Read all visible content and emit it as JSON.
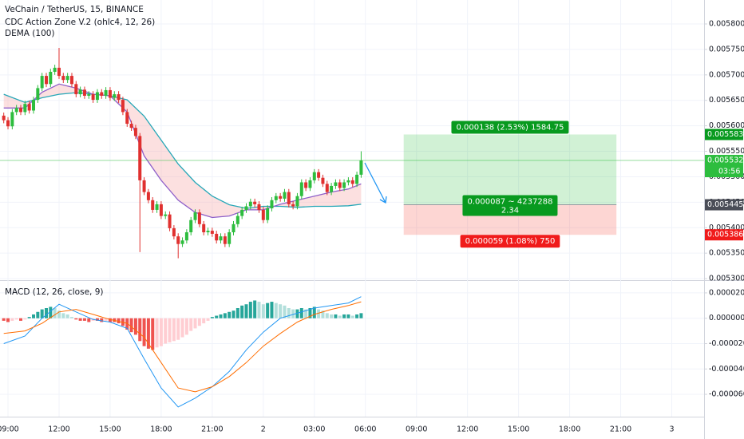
{
  "chart_data": [
    {
      "type": "candlestick",
      "title": "VeChain / TetherUS, 15, BINANCE",
      "indicators": [
        "CDC Action Zone V.2 (ohlc4, 12, 26)",
        "DEMA (100)"
      ],
      "xlim": [
        -0.47,
        40.9
      ],
      "ylim": [
        0.005297,
        0.005847
      ],
      "yticks": [
        {
          "value": 0.0058,
          "label": "0.005800"
        },
        {
          "value": 0.00575,
          "label": "0.005750"
        },
        {
          "value": 0.0057,
          "label": "0.005700"
        },
        {
          "value": 0.00565,
          "label": "0.005650"
        },
        {
          "value": 0.0056,
          "label": "0.005600"
        },
        {
          "value": 0.00555,
          "label": "0.005550"
        },
        {
          "value": 0.0055,
          "label": "0.005500"
        },
        {
          "value": 0.00545,
          "label": "0.005450"
        },
        {
          "value": 0.0054,
          "label": "0.005400"
        },
        {
          "value": 0.00535,
          "label": "0.005350"
        },
        {
          "value": 0.0053,
          "label": "0.005300"
        }
      ],
      "grid": true,
      "up_color": "#2dbd3e",
      "down_color": "#e0302f",
      "x": [
        -0.25,
        0,
        0.25,
        0.5,
        0.75,
        1,
        1.25,
        1.5,
        1.75,
        2,
        2.25,
        2.5,
        2.75,
        3,
        3.25,
        3.5,
        3.75,
        4,
        4.25,
        4.5,
        4.75,
        5,
        5.25,
        5.5,
        5.75,
        6,
        6.25,
        6.5,
        6.75,
        7,
        7.25,
        7.5,
        7.75,
        8,
        8.25,
        8.5,
        8.75,
        9,
        9.25,
        9.5,
        9.75,
        10,
        10.25,
        10.5,
        10.75,
        11,
        11.25,
        11.5,
        11.75,
        12,
        12.25,
        12.5,
        12.75,
        13,
        13.25,
        13.5,
        13.75,
        14,
        14.25,
        14.5,
        14.75,
        15,
        15.25,
        15.5,
        15.75,
        16,
        16.25,
        16.5,
        16.75,
        17,
        17.25,
        17.5,
        17.75,
        18,
        18.25,
        18.5,
        18.75,
        19,
        19.25,
        19.5,
        19.75,
        20,
        20.25,
        20.5,
        20.75
      ],
      "open": [
        0.00562,
        0.005611,
        0.005599,
        0.005627,
        0.005635,
        0.005627,
        0.005643,
        0.00563,
        0.005651,
        0.005674,
        0.005698,
        0.005682,
        0.005706,
        0.005714,
        0.005698,
        0.00569,
        0.005698,
        0.005682,
        0.005662,
        0.005671,
        0.005659,
        0.005662,
        0.005651,
        0.005666,
        0.005659,
        0.00567,
        0.005655,
        0.005662,
        0.005651,
        0.005627,
        0.005604,
        0.005596,
        0.00558,
        0.005493,
        0.00547,
        0.005454,
        0.005435,
        0.005446,
        0.005423,
        0.005426,
        0.005399,
        0.005383,
        0.005368,
        0.005375,
        0.005391,
        0.005415,
        0.00543,
        0.005407,
        0.005391,
        0.005394,
        0.005388,
        0.005375,
        0.005383,
        0.005368,
        0.005391,
        0.005407,
        0.005423,
        0.005435,
        0.005442,
        0.005451,
        0.005446,
        0.005435,
        0.005415,
        0.005438,
        0.005454,
        0.005462,
        0.005457,
        0.00547,
        0.005446,
        0.005442,
        0.005462,
        0.005489,
        0.005478,
        0.005493,
        0.005509,
        0.005498,
        0.005486,
        0.00547,
        0.005482,
        0.005489,
        0.005478,
        0.005489,
        0.005493,
        0.005486,
        0.005504
      ],
      "high": [
        0.005626,
        0.005617,
        0.005633,
        0.005641,
        0.005641,
        0.005649,
        0.005649,
        0.005657,
        0.00568,
        0.005704,
        0.005704,
        0.005712,
        0.00572,
        0.005753,
        0.005704,
        0.005704,
        0.005704,
        0.005688,
        0.005677,
        0.005677,
        0.005668,
        0.005668,
        0.005672,
        0.005672,
        0.005676,
        0.005676,
        0.005668,
        0.005668,
        0.005657,
        0.005633,
        0.00561,
        0.005602,
        0.005586,
        0.005499,
        0.005476,
        0.00546,
        0.005452,
        0.005452,
        0.005432,
        0.005432,
        0.005405,
        0.005389,
        0.005381,
        0.005397,
        0.005421,
        0.005436,
        0.005436,
        0.005413,
        0.0054,
        0.0054,
        0.005394,
        0.005389,
        0.005389,
        0.005397,
        0.005413,
        0.005429,
        0.005441,
        0.005448,
        0.005457,
        0.005457,
        0.005452,
        0.005441,
        0.005444,
        0.00546,
        0.005468,
        0.005468,
        0.005476,
        0.005476,
        0.005452,
        0.005468,
        0.005495,
        0.005495,
        0.005499,
        0.005515,
        0.005515,
        0.005504,
        0.005492,
        0.005488,
        0.005495,
        0.005495,
        0.005495,
        0.005499,
        0.005499,
        0.00551,
        0.00555
      ],
      "low": [
        0.005605,
        0.005593,
        0.005593,
        0.005621,
        0.005621,
        0.005621,
        0.005624,
        0.005624,
        0.005645,
        0.005668,
        0.005676,
        0.005676,
        0.0057,
        0.005692,
        0.005684,
        0.005684,
        0.005676,
        0.005656,
        0.005656,
        0.005653,
        0.005653,
        0.005645,
        0.005645,
        0.005653,
        0.005653,
        0.005649,
        0.005649,
        0.005645,
        0.005621,
        0.005598,
        0.00559,
        0.005574,
        0.005352,
        0.005464,
        0.005448,
        0.005429,
        0.005429,
        0.005417,
        0.005417,
        0.005393,
        0.005377,
        0.00534,
        0.005362,
        0.005369,
        0.005385,
        0.005409,
        0.005401,
        0.005385,
        0.005385,
        0.005382,
        0.005369,
        0.005369,
        0.005362,
        0.005362,
        0.005385,
        0.005401,
        0.005417,
        0.005429,
        0.005436,
        0.00544,
        0.005429,
        0.005409,
        0.005409,
        0.005432,
        0.005448,
        0.005451,
        0.005451,
        0.00544,
        0.005436,
        0.005436,
        0.005456,
        0.005472,
        0.005472,
        0.005487,
        0.005492,
        0.00548,
        0.005464,
        0.005464,
        0.005476,
        0.005472,
        0.005472,
        0.005483,
        0.00548,
        0.00548,
        0.005498
      ],
      "close": [
        0.005611,
        0.005599,
        0.005627,
        0.005635,
        0.005627,
        0.005643,
        0.00563,
        0.005651,
        0.005674,
        0.005698,
        0.005682,
        0.005706,
        0.005714,
        0.005698,
        0.00569,
        0.005698,
        0.005682,
        0.005662,
        0.005671,
        0.005659,
        0.005662,
        0.005651,
        0.005666,
        0.005659,
        0.00567,
        0.005655,
        0.005662,
        0.005651,
        0.005627,
        0.005604,
        0.005596,
        0.00558,
        0.005493,
        0.00547,
        0.005454,
        0.005435,
        0.005446,
        0.005423,
        0.005426,
        0.005399,
        0.005383,
        0.005368,
        0.005375,
        0.005391,
        0.005415,
        0.00543,
        0.005407,
        0.005391,
        0.005394,
        0.005388,
        0.005375,
        0.005383,
        0.005368,
        0.005391,
        0.005407,
        0.005423,
        0.005435,
        0.005442,
        0.005451,
        0.005446,
        0.005435,
        0.005415,
        0.005438,
        0.005454,
        0.005462,
        0.005457,
        0.00547,
        0.005446,
        0.005442,
        0.005462,
        0.005489,
        0.005478,
        0.005493,
        0.005509,
        0.005498,
        0.005486,
        0.00547,
        0.005482,
        0.005489,
        0.005478,
        0.005489,
        0.005493,
        0.005486,
        0.005504,
        0.005532
      ],
      "lines": [
        {
          "color": "#26a7b7",
          "x": [
            -0.25,
            1,
            2,
            3,
            4,
            5,
            6,
            7,
            8,
            9,
            10,
            11,
            12,
            13,
            14,
            15,
            16,
            17,
            18,
            19,
            20,
            20.75
          ],
          "values": [
            0.005662,
            0.005646,
            0.005655,
            0.005662,
            0.005665,
            0.005662,
            0.005659,
            0.005651,
            0.005619,
            0.005572,
            0.005525,
            0.005489,
            0.005462,
            0.005445,
            0.005438,
            0.005442,
            0.005442,
            0.00544,
            0.005442,
            0.005442,
            0.005443,
            0.005446
          ]
        },
        {
          "color": "#8e5fc9",
          "x": [
            -0.25,
            1,
            2,
            3,
            4,
            5,
            6,
            7,
            8,
            9,
            10,
            11,
            12,
            13,
            14,
            15,
            16,
            17,
            18,
            19,
            20,
            20.75
          ],
          "values": [
            0.005635,
            0.005635,
            0.005666,
            0.005682,
            0.005674,
            0.005662,
            0.005659,
            0.005627,
            0.005541,
            0.005493,
            0.005454,
            0.00543,
            0.00542,
            0.005423,
            0.005435,
            0.005435,
            0.005446,
            0.005454,
            0.005462,
            0.00547,
            0.005476,
            0.005486
          ]
        }
      ],
      "last_price": {
        "value": 0.005532,
        "label": "0.005532",
        "countdown": "03:56",
        "color": "#2dbd3e"
      },
      "position": {
        "x_range": [
          23.25,
          35.75
        ],
        "target": {
          "value": 0.005583,
          "label": "0.005583"
        },
        "entry": {
          "value": 0.005445,
          "label": "0.005445"
        },
        "stop": {
          "value": 0.005386,
          "label": "0.005386"
        },
        "target_text": "0.000138 (2.53%) 1584.75",
        "entry_text": [
          "0.000087 ~ 4237288",
          "2.34"
        ],
        "stop_text": "0.000059 (1.08%) 750",
        "profit_color": "#089a1f",
        "loss_color": "#f01b1b"
      }
    },
    {
      "type": "macd",
      "title": "MACD (12, 26, close, 9)",
      "xlim": [
        -0.47,
        40.9
      ],
      "ylim": [
        -7.76e-05,
        2.94e-05
      ],
      "yticks": [
        {
          "value": 2e-05,
          "label": "0.000020"
        },
        {
          "value": 0,
          "label": "0.000000"
        },
        {
          "value": -2e-05,
          "label": "-0.000020"
        },
        {
          "value": -4e-05,
          "label": "-0.000040"
        },
        {
          "value": -6e-05,
          "label": "-0.000060"
        }
      ],
      "xticks": [
        {
          "value": 0,
          "label": "09:00"
        },
        {
          "value": 3,
          "label": "12:00"
        },
        {
          "value": 6,
          "label": "15:00"
        },
        {
          "value": 9,
          "label": "18:00"
        },
        {
          "value": 12,
          "label": "21:00"
        },
        {
          "value": 15,
          "label": "2"
        },
        {
          "value": 18,
          "label": "03:00"
        },
        {
          "value": 21,
          "label": "06:00"
        },
        {
          "value": 24,
          "label": "09:00"
        },
        {
          "value": 27,
          "label": "12:00"
        },
        {
          "value": 30,
          "label": "15:00"
        },
        {
          "value": 33,
          "label": "18:00"
        },
        {
          "value": 36,
          "label": "21:00"
        },
        {
          "value": 39,
          "label": "3"
        }
      ],
      "hist_colors": [
        "#26a69a",
        "#b2dfdb",
        "#ef5350",
        "#ffcdd2"
      ],
      "hist_x": [
        -0.25,
        0,
        0.25,
        0.5,
        0.75,
        1,
        1.25,
        1.5,
        1.75,
        2,
        2.25,
        2.5,
        2.75,
        3,
        3.25,
        3.5,
        3.75,
        4,
        4.25,
        4.5,
        4.75,
        5,
        5.25,
        5.5,
        5.75,
        6,
        6.25,
        6.5,
        6.75,
        7,
        7.25,
        7.5,
        7.75,
        8,
        8.25,
        8.5,
        8.75,
        9,
        9.25,
        9.5,
        9.75,
        10,
        10.25,
        10.5,
        10.75,
        11,
        11.25,
        11.5,
        11.75,
        12,
        12.25,
        12.5,
        12.75,
        13,
        13.25,
        13.5,
        13.75,
        14,
        14.25,
        14.5,
        14.75,
        15,
        15.25,
        15.5,
        15.75,
        16,
        16.25,
        16.5,
        16.75,
        17,
        17.25,
        17.5,
        17.75,
        18,
        18.25,
        18.5,
        18.75,
        19,
        19.25,
        19.5,
        19.75,
        20,
        20.25,
        20.5,
        20.75
      ],
      "histogram": [
        -2e-06,
        -3e-06,
        -2e-06,
        -1e-06,
        -2e-06,
        -1e-06,
        1e-06,
        3e-06,
        5e-06,
        7e-06,
        8e-06,
        9e-06,
        8e-06,
        6e-06,
        4e-06,
        3e-06,
        1e-06,
        -1e-06,
        -2e-06,
        -2e-06,
        -3e-06,
        -2e-06,
        -2e-06,
        -3e-06,
        -2e-06,
        -3e-06,
        -3e-06,
        -4e-06,
        -6e-06,
        -9e-06,
        -1.1e-05,
        -1.3e-05,
        -1.8e-05,
        -2.2e-05,
        -2.4e-05,
        -2.5e-05,
        -2.3e-05,
        -2.2e-05,
        -2e-05,
        -1.9e-05,
        -1.8e-05,
        -1.7e-05,
        -1.5e-05,
        -1.3e-05,
        -1e-05,
        -8e-06,
        -6e-06,
        -4e-06,
        -2e-06,
        1e-06,
        2e-06,
        3e-06,
        4e-06,
        5e-06,
        6e-06,
        8e-06,
        1e-05,
        1.1e-05,
        1.3e-05,
        1.4e-05,
        1.3e-05,
        1.1e-05,
        1.2e-05,
        1.3e-05,
        1.2e-05,
        1.1e-05,
        1e-05,
        8e-06,
        7e-06,
        7e-06,
        8e-06,
        7e-06,
        8e-06,
        9e-06,
        7e-06,
        6e-06,
        4e-06,
        3e-06,
        3e-06,
        2e-06,
        3e-06,
        3e-06,
        2e-06,
        3e-06,
        4e-06
      ],
      "lines": [
        {
          "color": "#2196f3",
          "x": [
            -0.25,
            1,
            2,
            3,
            4,
            5,
            6,
            7,
            8,
            9,
            10,
            11,
            12,
            13,
            14,
            15,
            16,
            17,
            18,
            19,
            20,
            20.75
          ],
          "values": [
            -2e-05,
            -1.4e-05,
            0,
            1.1e-05,
            5e-06,
            -1e-06,
            -3e-06,
            -8e-06,
            -3.2e-05,
            -5.5e-05,
            -7e-05,
            -6.3e-05,
            -5.4e-05,
            -4.2e-05,
            -2.5e-05,
            -1.1e-05,
            0,
            4e-06,
            8e-06,
            1e-05,
            1.2e-05,
            1.7e-05
          ]
        },
        {
          "color": "#ff6d00",
          "x": [
            -0.25,
            1,
            2,
            3,
            4,
            5,
            6,
            7,
            8,
            9,
            10,
            11,
            12,
            13,
            14,
            15,
            16,
            17,
            18,
            19,
            20,
            20.75
          ],
          "values": [
            -1.2e-05,
            -1e-05,
            -4e-06,
            5e-06,
            7e-06,
            3e-06,
            -1e-06,
            -4e-06,
            -1.5e-05,
            -3.5e-05,
            -5.5e-05,
            -5.8e-05,
            -5.4e-05,
            -4.6e-05,
            -3.5e-05,
            -2.2e-05,
            -1.2e-05,
            -3e-06,
            3e-06,
            7e-06,
            1e-05,
            1.3e-05
          ]
        }
      ]
    }
  ]
}
